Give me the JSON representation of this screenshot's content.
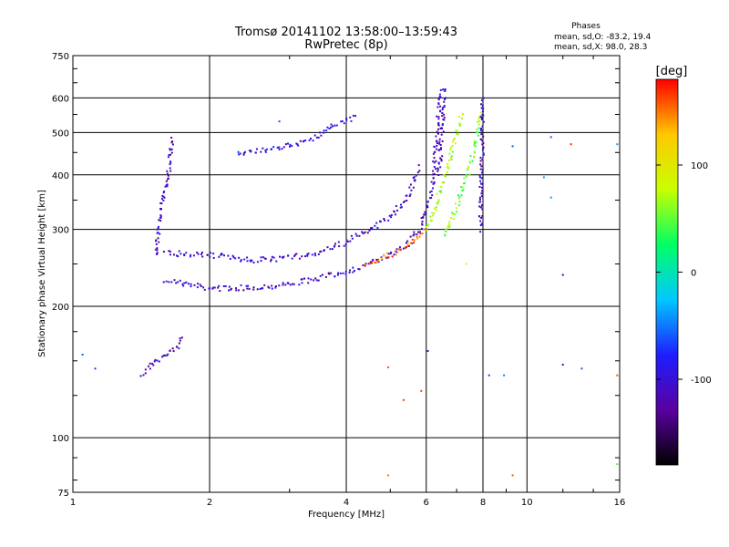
{
  "header": {
    "title_line1": "Tromsø 20141102 13:58:00–13:59:43",
    "title_line2": "RwPretec (8p)"
  },
  "stats": {
    "heading": "Phases",
    "line_o": "mean, sd,O: -83.2, 19.4",
    "line_x": "mean, sd,X: 98.0, 28.3"
  },
  "colorbar": {
    "unit_label": "[deg]",
    "tick_labels": [
      "100",
      "0",
      "-100"
    ],
    "tick_values": [
      100,
      0,
      -100
    ],
    "range": [
      -180,
      180
    ],
    "colormap": [
      "#000000",
      "#5a00a0",
      "#1e1eff",
      "#00c8ff",
      "#00ff66",
      "#c8ff00",
      "#ffc800",
      "#ff0000"
    ]
  },
  "chart_data": {
    "type": "scatter",
    "title": "Tromsø 20141102 13:58:00–13:59:43",
    "subtitle": "RwPretec (8p)",
    "xlabel": "Frequency [MHz]",
    "ylabel": "Stationary phase Virtual Height [km]",
    "x_scale": "log",
    "y_scale": "log",
    "xlim": [
      1,
      16
    ],
    "ylim": [
      75,
      750
    ],
    "x_ticks": [
      1,
      2,
      4,
      6,
      8,
      10,
      16
    ],
    "x_tick_labels": [
      "1",
      "2",
      "4",
      "6",
      "8",
      "10",
      "16"
    ],
    "y_ticks": [
      75,
      100,
      200,
      300,
      400,
      500,
      600,
      750
    ],
    "y_tick_labels": [
      "75",
      "100",
      "200",
      "300",
      "400",
      "500",
      "600",
      "750"
    ],
    "grid": true,
    "color_encoding": "phase [deg]",
    "series": [
      {
        "traces": [
          {
            "x": [
              1.6,
              1.8,
              2.0,
              2.3,
              2.7,
              3.0,
              3.5,
              4.0,
              4.5,
              5.0,
              5.5,
              5.8,
              6.0,
              6.2,
              6.3,
              6.45
            ],
            "y": [
              230,
              224,
              220,
              220,
              222,
              225,
              232,
              240,
              250,
              262,
              280,
              300,
              330,
              380,
              470,
              630
            ],
            "phase": -110
          },
          {
            "x": [
              1.6,
              2.0,
              2.5,
              3.0,
              3.5,
              4.0,
              4.5,
              5.0,
              5.5,
              5.8
            ],
            "y": [
              265,
              262,
              255,
              258,
              266,
              280,
              300,
              320,
              360,
              420
            ],
            "phase": -105
          },
          {
            "x": [
              4.4,
              4.7,
              5.0,
              5.3,
              5.6,
              5.8,
              6.0
            ],
            "y": [
              250,
              255,
              262,
              270,
              280,
              290,
              300
            ],
            "phase": 150
          },
          {
            "x": [
              6.0,
              6.3,
              6.6,
              6.9,
              7.2
            ],
            "y": [
              300,
              340,
              400,
              470,
              550
            ],
            "phase": 75
          },
          {
            "x": [
              6.6,
              7.0,
              7.4,
              7.7,
              7.9
            ],
            "y": [
              290,
              340,
              400,
              470,
              560
            ],
            "phase": 55
          },
          {
            "x": [
              2.3,
              2.8,
              3.3,
              3.8,
              4.2
            ],
            "y": [
              448,
              460,
              480,
              520,
              545
            ],
            "phase": -100
          },
          {
            "x": [
              1.52,
              1.56,
              1.62,
              1.66
            ],
            "y": [
              260,
              330,
              400,
              490
            ],
            "phase": -110
          },
          {
            "x": [
              1.42,
              1.5,
              1.6,
              1.7,
              1.75
            ],
            "y": [
              140,
              148,
              155,
              160,
              170
            ],
            "phase": -115
          },
          {
            "x": [
              7.9,
              8.0
            ],
            "y": [
              300,
              600
            ],
            "phase": -110
          },
          {
            "x": [
              6.4,
              6.6
            ],
            "y": [
              400,
              640
            ],
            "phase": -110
          }
        ],
        "scattered_points": [
          {
            "x": 1.05,
            "y": 155,
            "phase": -60
          },
          {
            "x": 1.12,
            "y": 144,
            "phase": -70
          },
          {
            "x": 2.85,
            "y": 530,
            "phase": -60
          },
          {
            "x": 4.95,
            "y": 82,
            "phase": 150
          },
          {
            "x": 4.95,
            "y": 145,
            "phase": 160
          },
          {
            "x": 5.35,
            "y": 122,
            "phase": 165
          },
          {
            "x": 5.85,
            "y": 128,
            "phase": 165
          },
          {
            "x": 6.05,
            "y": 158,
            "phase": -110
          },
          {
            "x": 7.35,
            "y": 250,
            "phase": 80
          },
          {
            "x": 8.25,
            "y": 139,
            "phase": -70
          },
          {
            "x": 8.9,
            "y": 139,
            "phase": -50
          },
          {
            "x": 9.3,
            "y": 465,
            "phase": -60
          },
          {
            "x": 9.3,
            "y": 82,
            "phase": 160
          },
          {
            "x": 10.9,
            "y": 395,
            "phase": -40
          },
          {
            "x": 11.3,
            "y": 355,
            "phase": -40
          },
          {
            "x": 11.3,
            "y": 488,
            "phase": -60
          },
          {
            "x": 12.0,
            "y": 236,
            "phase": -130
          },
          {
            "x": 12.0,
            "y": 147,
            "phase": -120
          },
          {
            "x": 12.5,
            "y": 470,
            "phase": 170
          },
          {
            "x": 13.2,
            "y": 144,
            "phase": -60
          },
          {
            "x": 15.8,
            "y": 470,
            "phase": -40
          },
          {
            "x": 15.8,
            "y": 139,
            "phase": 160
          },
          {
            "x": 15.8,
            "y": 87,
            "phase": 40
          }
        ]
      }
    ]
  }
}
